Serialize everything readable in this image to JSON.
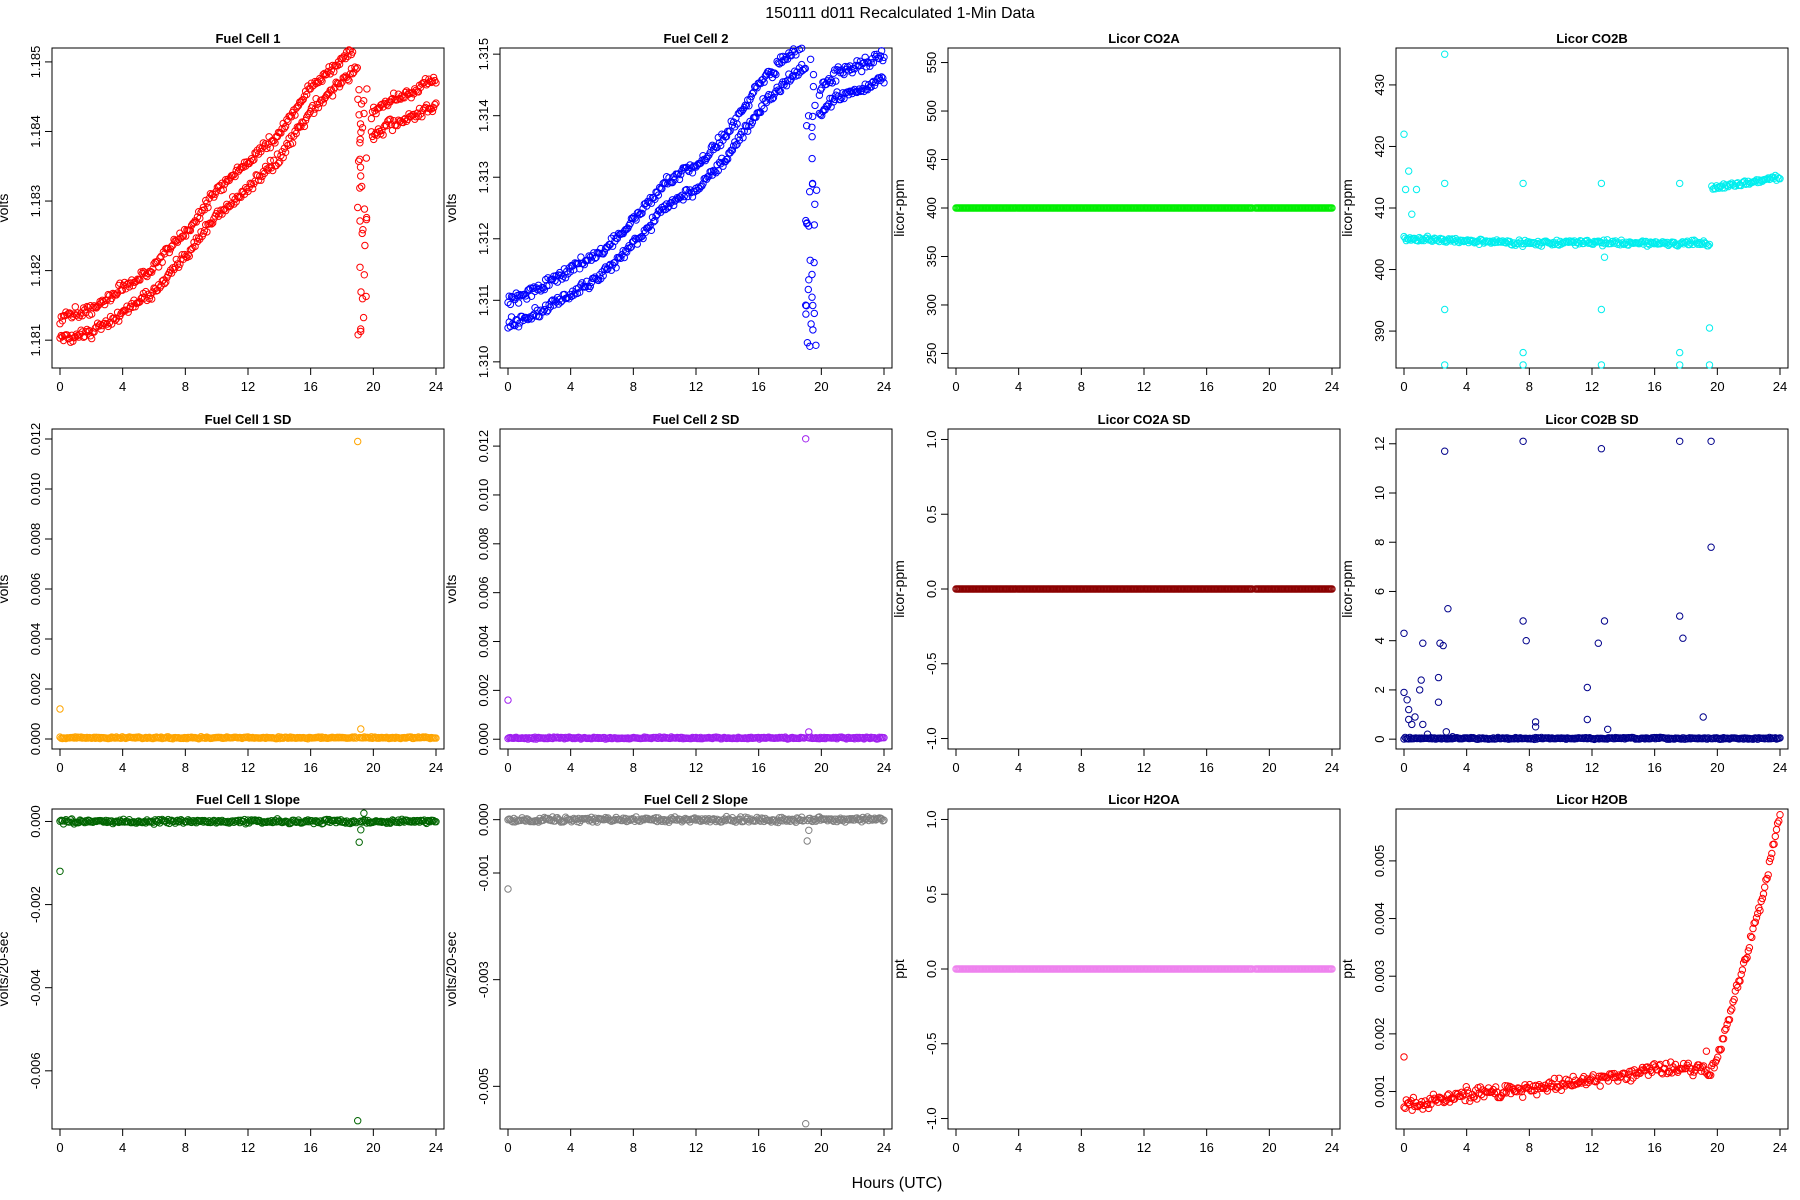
{
  "figure": {
    "title": "150111    d011    Recalculated 1-Min Data",
    "xlabel": "Hours (UTC)"
  },
  "chart_data": [
    {
      "type": "scatter",
      "title": "Fuel Cell 1",
      "ylabel": "volts",
      "color": "#ff0000",
      "xlim": [
        0,
        24
      ],
      "ylim": [
        1.1806,
        1.1852
      ],
      "yticks": [
        1.181,
        1.182,
        1.183,
        1.184,
        1.185
      ],
      "yticklabels": [
        "1.181",
        "1.182",
        "1.183",
        "1.184",
        "1.185"
      ],
      "trend": [
        [
          0,
          1.181
        ],
        [
          2,
          1.1811
        ],
        [
          4,
          1.1814
        ],
        [
          6,
          1.1817
        ],
        [
          8,
          1.1822
        ],
        [
          10,
          1.1828
        ],
        [
          12,
          1.1832
        ],
        [
          14,
          1.1836
        ],
        [
          16,
          1.1843
        ],
        [
          18,
          1.1847
        ],
        [
          19,
          1.1849
        ]
      ],
      "trend2": [
        [
          19.8,
          1.1839
        ],
        [
          21,
          1.1841
        ],
        [
          22.5,
          1.1842
        ],
        [
          24,
          1.1844
        ]
      ],
      "bands": [
        0,
        0.00035
      ],
      "noise": 7e-05,
      "gap": [
        19.0,
        19.6
      ],
      "gap_y": [
        1.181,
        1.1847
      ]
    },
    {
      "type": "scatter",
      "title": "Fuel Cell 2",
      "ylabel": "volts",
      "color": "#0000ff",
      "xlim": [
        0,
        24
      ],
      "ylim": [
        1.3099,
        1.3151
      ],
      "yticks": [
        1.31,
        1.311,
        1.312,
        1.313,
        1.314,
        1.315
      ],
      "yticklabels": [
        "1.310",
        "1.311",
        "1.312",
        "1.313",
        "1.314",
        "1.315"
      ],
      "trend": [
        [
          0,
          1.3106
        ],
        [
          2,
          1.3108
        ],
        [
          4,
          1.3111
        ],
        [
          6,
          1.3114
        ],
        [
          8,
          1.3119
        ],
        [
          10,
          1.3125
        ],
        [
          12,
          1.3128
        ],
        [
          14,
          1.3133
        ],
        [
          16,
          1.3141
        ],
        [
          18,
          1.3146
        ],
        [
          19,
          1.3148
        ]
      ],
      "trend2": [
        [
          19.8,
          1.314
        ],
        [
          21,
          1.3143
        ],
        [
          22.5,
          1.3144
        ],
        [
          24,
          1.3146
        ]
      ],
      "bands": [
        0,
        0.0004
      ],
      "noise": 8e-05,
      "gap": [
        19.0,
        19.7
      ],
      "gap_y": [
        1.3102,
        1.315
      ]
    },
    {
      "type": "scatter",
      "title": "Licor CO2A",
      "ylabel": "licor-ppm",
      "color": "#00ee00",
      "xlim": [
        0,
        24
      ],
      "ylim": [
        235,
        565
      ],
      "yticks": [
        250,
        300,
        350,
        400,
        450,
        500,
        550
      ],
      "yticklabels": [
        "250",
        "300",
        "350",
        "400",
        "450",
        "500",
        "550"
      ],
      "trend": [
        [
          0,
          400
        ],
        [
          24,
          400
        ]
      ],
      "bands": [
        0
      ],
      "noise": 0,
      "break": 19.0
    },
    {
      "type": "scatter",
      "title": "Licor CO2B",
      "ylabel": "licor-ppm",
      "color": "#00eeee",
      "xlim": [
        0,
        24
      ],
      "ylim": [
        384,
        436
      ],
      "yticks": [
        390,
        400,
        410,
        420,
        430
      ],
      "yticklabels": [
        "390",
        "400",
        "410",
        "420",
        "430"
      ],
      "trend": [
        [
          0,
          405
        ],
        [
          8,
          404.3
        ],
        [
          12,
          404.4
        ],
        [
          19.5,
          404.2
        ]
      ],
      "trend2": [
        [
          19.6,
          413.2
        ],
        [
          24,
          415
        ]
      ],
      "bands": [
        0
      ],
      "noise": 0.35,
      "outliers": [
        [
          0,
          422
        ],
        [
          0.1,
          413
        ],
        [
          0.3,
          416
        ],
        [
          0.5,
          409
        ],
        [
          0.8,
          413
        ],
        [
          2.6,
          435
        ],
        [
          2.6,
          414
        ],
        [
          2.6,
          393.5
        ],
        [
          2.6,
          384.5
        ],
        [
          7.6,
          414
        ],
        [
          7.6,
          386.5
        ],
        [
          7.6,
          384.5
        ],
        [
          12.6,
          414
        ],
        [
          12.6,
          393.5
        ],
        [
          12.6,
          384.5
        ],
        [
          12.8,
          402
        ],
        [
          17.6,
          414
        ],
        [
          17.6,
          386.5
        ],
        [
          17.6,
          384.5
        ],
        [
          19.5,
          390.5
        ],
        [
          19.5,
          384.5
        ]
      ]
    },
    {
      "type": "scatter",
      "title": "Fuel Cell 1 SD",
      "ylabel": "volts",
      "color": "#ffa500",
      "xlim": [
        0,
        24
      ],
      "ylim": [
        -0.0004,
        0.0124
      ],
      "yticks": [
        0,
        0.002,
        0.004,
        0.006,
        0.008,
        0.01,
        0.012
      ],
      "yticklabels": [
        "0.000",
        "0.002",
        "0.004",
        "0.006",
        "0.008",
        "0.010",
        "0.012"
      ],
      "trend": [
        [
          0,
          5e-05
        ],
        [
          24,
          5e-05
        ]
      ],
      "bands": [
        0
      ],
      "noise": 3e-05,
      "break": 19.0,
      "outliers": [
        [
          0,
          0.0012
        ],
        [
          19,
          0.0119
        ],
        [
          19.2,
          0.0004
        ]
      ]
    },
    {
      "type": "scatter",
      "title": "Fuel Cell 2 SD",
      "ylabel": "volts",
      "color": "#a020f0",
      "xlim": [
        0,
        24
      ],
      "ylim": [
        -0.0004,
        0.0127
      ],
      "yticks": [
        0,
        0.002,
        0.004,
        0.006,
        0.008,
        0.01,
        0.012
      ],
      "yticklabels": [
        "0.000",
        "0.002",
        "0.004",
        "0.006",
        "0.008",
        "0.010",
        "0.012"
      ],
      "trend": [
        [
          0,
          5e-05
        ],
        [
          24,
          5e-05
        ]
      ],
      "bands": [
        0
      ],
      "noise": 3e-05,
      "break": 19.0,
      "outliers": [
        [
          0,
          0.0016
        ],
        [
          19,
          0.0123
        ],
        [
          19.2,
          0.0003
        ]
      ]
    },
    {
      "type": "scatter",
      "title": "Licor CO2A SD",
      "ylabel": "licor-ppm",
      "color": "#8b0000",
      "xlim": [
        0,
        24
      ],
      "ylim": [
        -1.07,
        1.07
      ],
      "yticks": [
        -1,
        -0.5,
        0,
        0.5,
        1
      ],
      "yticklabels": [
        "-1.0",
        "-0.5",
        "0.0",
        "0.5",
        "1.0"
      ],
      "trend": [
        [
          0,
          0
        ],
        [
          24,
          0
        ]
      ],
      "bands": [
        0
      ],
      "noise": 0,
      "break": 19.0
    },
    {
      "type": "scatter",
      "title": "Licor CO2B SD",
      "ylabel": "licor-ppm",
      "color": "#00008b",
      "xlim": [
        0,
        24
      ],
      "ylim": [
        -0.4,
        12.6
      ],
      "yticks": [
        0,
        2,
        4,
        6,
        8,
        10,
        12
      ],
      "yticklabels": [
        "0",
        "2",
        "4",
        "6",
        "8",
        "10",
        "12"
      ],
      "trend": [
        [
          0,
          0.03
        ],
        [
          24,
          0.03
        ]
      ],
      "bands": [
        0
      ],
      "noise": 0.03,
      "break": 19.5,
      "outliers": [
        [
          0,
          4.3
        ],
        [
          0,
          1.9
        ],
        [
          0.2,
          1.6
        ],
        [
          0.3,
          1.2
        ],
        [
          0.3,
          0.8
        ],
        [
          0.5,
          0.6
        ],
        [
          0.7,
          0.9
        ],
        [
          1.0,
          2.0
        ],
        [
          1.1,
          2.4
        ],
        [
          1.2,
          3.9
        ],
        [
          1.2,
          0.6
        ],
        [
          1.5,
          0.2
        ],
        [
          2.2,
          1.5
        ],
        [
          2.2,
          2.5
        ],
        [
          2.3,
          3.9
        ],
        [
          2.5,
          3.8
        ],
        [
          2.6,
          11.7
        ],
        [
          2.7,
          0.3
        ],
        [
          2.8,
          5.3
        ],
        [
          3.1,
          0.1
        ],
        [
          7.6,
          12.1
        ],
        [
          7.6,
          4.8
        ],
        [
          7.8,
          4.0
        ],
        [
          8.4,
          0.7
        ],
        [
          8.4,
          0.5
        ],
        [
          11.7,
          2.1
        ],
        [
          11.7,
          0.8
        ],
        [
          12.4,
          3.9
        ],
        [
          12.6,
          11.8
        ],
        [
          12.8,
          4.8
        ],
        [
          13.0,
          0.4
        ],
        [
          17.6,
          12.1
        ],
        [
          17.6,
          5.0
        ],
        [
          17.8,
          4.1
        ],
        [
          19.1,
          0.9
        ],
        [
          19.6,
          12.1
        ],
        [
          19.6,
          7.8
        ]
      ]
    },
    {
      "type": "scatter",
      "title": "Fuel Cell 1 Slope",
      "ylabel": "volts/20-sec",
      "color": "#006400",
      "xlim": [
        0,
        24
      ],
      "ylim": [
        -0.0074,
        0.0003
      ],
      "yticks": [
        -0.006,
        -0.004,
        -0.002,
        0
      ],
      "yticklabels": [
        "-0.006",
        "-0.004",
        "-0.002",
        "0.000"
      ],
      "trend": [
        [
          0,
          0
        ],
        [
          24,
          0
        ]
      ],
      "bands": [
        0
      ],
      "noise": 4e-05,
      "break": 19.0,
      "outliers": [
        [
          0,
          -0.0012
        ],
        [
          19,
          -0.0072
        ],
        [
          19.1,
          -0.0005
        ],
        [
          19.2,
          -0.0002
        ],
        [
          19.4,
          0.0002
        ]
      ]
    },
    {
      "type": "scatter",
      "title": "Fuel Cell 2 Slope",
      "ylabel": "volts/20-sec",
      "color": "#808080",
      "xlim": [
        0,
        24
      ],
      "ylim": [
        -0.0058,
        0.0002
      ],
      "yticks": [
        -0.005,
        -0.003,
        -0.001,
        0
      ],
      "yticklabels": [
        "-0.005",
        "-0.003",
        "-0.001",
        "0.000"
      ],
      "trend": [
        [
          0,
          0
        ],
        [
          24,
          0
        ]
      ],
      "bands": [
        0
      ],
      "noise": 4e-05,
      "break": 19.0,
      "outliers": [
        [
          0,
          -0.0013
        ],
        [
          19,
          -0.0057
        ],
        [
          19.1,
          -0.0004
        ],
        [
          19.2,
          -0.0002
        ]
      ]
    },
    {
      "type": "scatter",
      "title": "Licor H2OA",
      "ylabel": "ppt",
      "color": "#ee82ee",
      "xlim": [
        0,
        24
      ],
      "ylim": [
        -1.07,
        1.07
      ],
      "yticks": [
        -1,
        -0.5,
        0,
        0.5,
        1
      ],
      "yticklabels": [
        "-1.0",
        "-0.5",
        "0.0",
        "0.5",
        "1.0"
      ],
      "trend": [
        [
          0,
          0
        ],
        [
          24,
          0
        ]
      ],
      "bands": [
        0
      ],
      "noise": 0,
      "break": 19.0
    },
    {
      "type": "scatter",
      "title": "Licor H2OB",
      "ylabel": "ppt",
      "color": "#ff0000",
      "xlim": [
        0,
        24
      ],
      "ylim": [
        0.00035,
        0.0059
      ],
      "yticks": [
        0.001,
        0.002,
        0.003,
        0.004,
        0.005
      ],
      "yticklabels": [
        "0.001",
        "0.002",
        "0.003",
        "0.004",
        "0.005"
      ],
      "trend": [
        [
          0,
          0.00075
        ],
        [
          4,
          0.00095
        ],
        [
          8,
          0.00105
        ],
        [
          12,
          0.0012
        ],
        [
          16,
          0.0014
        ],
        [
          19,
          0.0014
        ],
        [
          19.5,
          0.0013
        ],
        [
          20,
          0.0016
        ],
        [
          21,
          0.0025
        ],
        [
          22,
          0.0035
        ],
        [
          23,
          0.0045
        ],
        [
          24,
          0.0058
        ]
      ],
      "bands": [
        0
      ],
      "noise": 0.0001,
      "outliers": [
        [
          0,
          0.0016
        ],
        [
          19.3,
          0.0017
        ]
      ]
    }
  ]
}
